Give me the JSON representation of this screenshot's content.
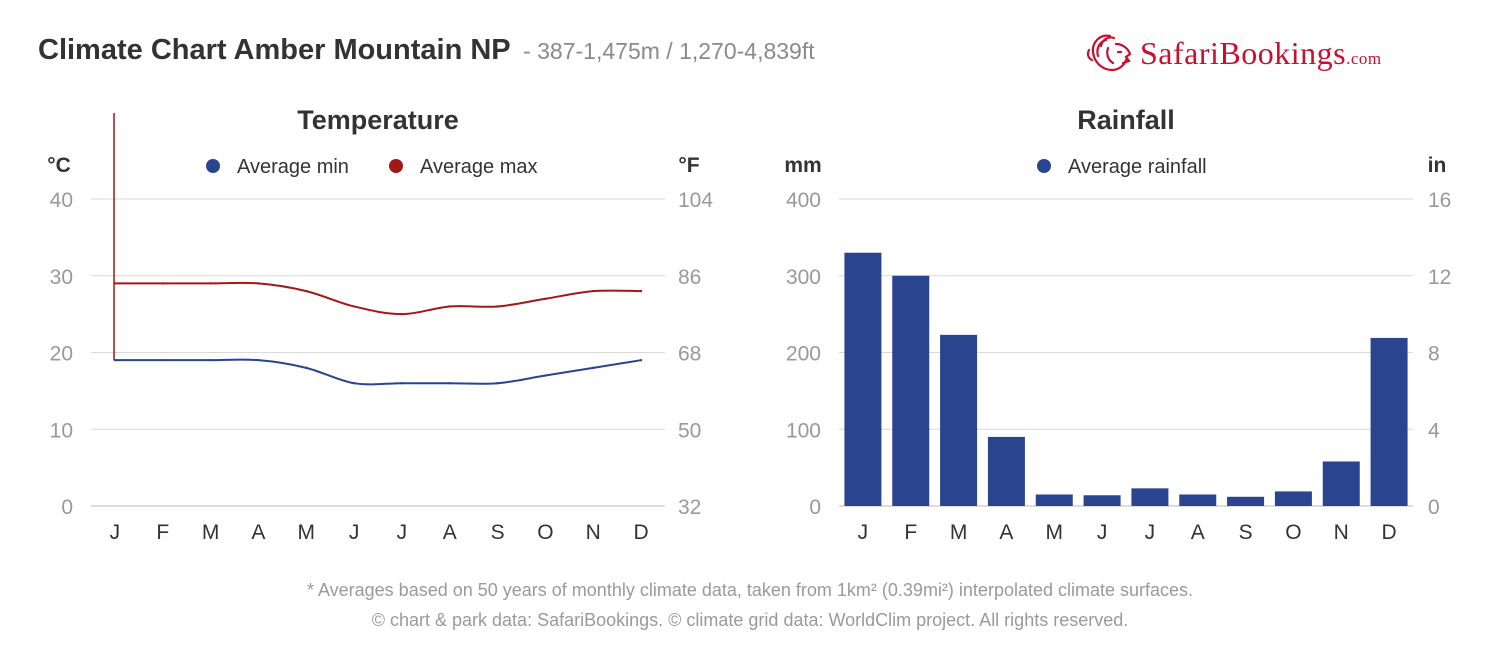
{
  "header": {
    "title": "Climate Chart Amber Mountain NP",
    "subtitle": "- 387-1,475m / 1,270-4,839ft"
  },
  "brand": {
    "name_prefix": "SafariBookings",
    "name_suffix": ".com",
    "color": "#c8102e"
  },
  "footnotes": {
    "line1": "* Averages based on 50 years of monthly climate data, taken from 1km² (0.39mi²) interpolated climate surfaces.",
    "line2": "© chart & park data: SafariBookings. © climate grid data: WorldClim project. All rights reserved."
  },
  "colors": {
    "min": "#2a4490",
    "max": "#a01818",
    "bar": "#2a4490",
    "grid": "#d9d9d9",
    "axis_text": "#999999",
    "dark_text": "#333333"
  },
  "chart_data": [
    {
      "type": "line",
      "title": "Temperature",
      "categories": [
        "J",
        "F",
        "M",
        "A",
        "M",
        "J",
        "J",
        "A",
        "S",
        "O",
        "N",
        "D"
      ],
      "series": [
        {
          "name": "Average min",
          "values": [
            19,
            19,
            19,
            19,
            18,
            16,
            16,
            16,
            16,
            17,
            18,
            19
          ]
        },
        {
          "name": "Average max",
          "values": [
            29,
            29,
            29,
            29,
            28,
            26,
            25,
            26,
            26,
            27,
            28,
            28
          ]
        }
      ],
      "ylabel": "°C",
      "y2label": "°F",
      "ylim": [
        0,
        40
      ],
      "yticks": [
        "0",
        "10",
        "20",
        "30",
        "40"
      ],
      "y2ticks": [
        "32",
        "50",
        "68",
        "86",
        "104"
      ],
      "grid": true,
      "legend": "top-center"
    },
    {
      "type": "bar",
      "title": "Rainfall",
      "categories": [
        "J",
        "F",
        "M",
        "A",
        "M",
        "J",
        "J",
        "A",
        "S",
        "O",
        "N",
        "D"
      ],
      "series": [
        {
          "name": "Average rainfall",
          "values": [
            330,
            300,
            223,
            90,
            15,
            14,
            23,
            15,
            12,
            19,
            58,
            219
          ]
        }
      ],
      "ylabel": "mm",
      "y2label": "in",
      "ylim": [
        0,
        400
      ],
      "yticks": [
        "0",
        "100",
        "200",
        "300",
        "400"
      ],
      "y2ticks": [
        "0",
        "4",
        "8",
        "12",
        "16"
      ],
      "grid": true,
      "legend": "top-center"
    }
  ]
}
